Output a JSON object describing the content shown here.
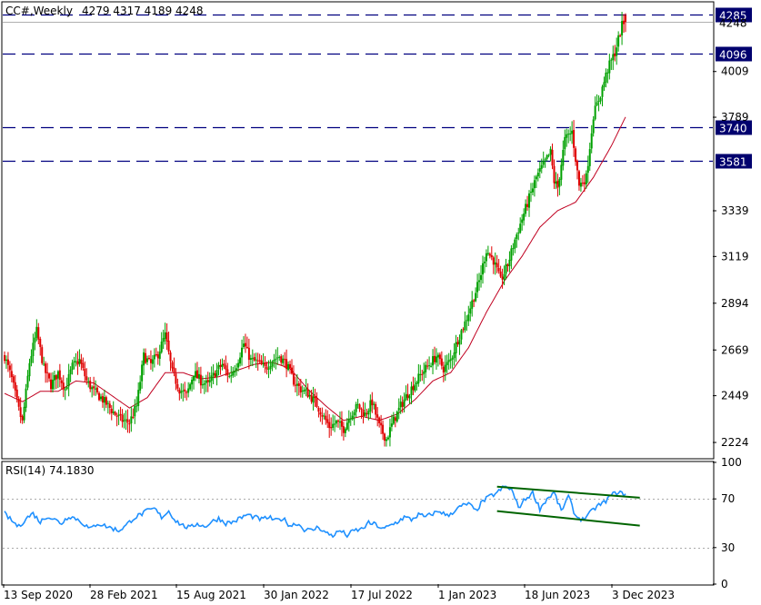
{
  "window": {
    "symbol_label": "CC#,Weekly",
    "ohlc_label": "4279 4317 4189 4248"
  },
  "colors": {
    "bull": "#00a000",
    "bear": "#e00000",
    "ma": "#c00020",
    "rsi": "#1e90ff",
    "trend": "#006400",
    "hline": "#00007f",
    "tag_bg": "#00006e",
    "grid": "#b0b0b0"
  },
  "chart_data": [
    {
      "type": "candlestick",
      "title": "CC#,Weekly",
      "ylim": [
        2150,
        4340
      ],
      "y_ticks": [
        2224,
        2449,
        2669,
        2894,
        3119,
        3339,
        3789,
        4009
      ],
      "x_ticks": [
        "13 Sep 2020",
        "28 Feb 2021",
        "15 Aug 2021",
        "30 Jan 2022",
        "17 Jul 2022",
        "1 Jan 2023",
        "18 Jun 2023",
        "3 Dec 2023"
      ],
      "price_lines": [
        4285,
        4096,
        3740,
        3581
      ],
      "price_tags": [
        "4285",
        "4096",
        "3740",
        "3581"
      ],
      "current_price": 4248,
      "current_price_label": "4248",
      "anchors": [
        [
          0,
          2640
        ],
        [
          4,
          2530
        ],
        [
          8,
          2380
        ],
        [
          10,
          2320
        ],
        [
          14,
          2610
        ],
        [
          18,
          2760
        ],
        [
          22,
          2580
        ],
        [
          26,
          2500
        ],
        [
          30,
          2560
        ],
        [
          34,
          2480
        ],
        [
          38,
          2590
        ],
        [
          42,
          2620
        ],
        [
          46,
          2520
        ],
        [
          50,
          2470
        ],
        [
          54,
          2440
        ],
        [
          58,
          2400
        ],
        [
          62,
          2360
        ],
        [
          66,
          2330
        ],
        [
          70,
          2320
        ],
        [
          74,
          2400
        ],
        [
          78,
          2640
        ],
        [
          82,
          2600
        ],
        [
          86,
          2650
        ],
        [
          90,
          2740
        ],
        [
          94,
          2560
        ],
        [
          98,
          2480
        ],
        [
          102,
          2450
        ],
        [
          106,
          2560
        ],
        [
          110,
          2520
        ],
        [
          114,
          2500
        ],
        [
          118,
          2560
        ],
        [
          122,
          2600
        ],
        [
          126,
          2540
        ],
        [
          130,
          2600
        ],
        [
          134,
          2700
        ],
        [
          138,
          2620
        ],
        [
          142,
          2610
        ],
        [
          146,
          2580
        ],
        [
          150,
          2620
        ],
        [
          154,
          2640
        ],
        [
          158,
          2600
        ],
        [
          162,
          2520
        ],
        [
          166,
          2480
        ],
        [
          170,
          2460
        ],
        [
          174,
          2420
        ],
        [
          178,
          2360
        ],
        [
          182,
          2300
        ],
        [
          186,
          2320
        ],
        [
          190,
          2290
        ],
        [
          194,
          2360
        ],
        [
          198,
          2400
        ],
        [
          202,
          2360
        ],
        [
          206,
          2420
        ],
        [
          210,
          2300
        ],
        [
          214,
          2240
        ],
        [
          218,
          2330
        ],
        [
          222,
          2400
        ],
        [
          226,
          2460
        ],
        [
          230,
          2510
        ],
        [
          234,
          2560
        ],
        [
          238,
          2600
        ],
        [
          242,
          2640
        ],
        [
          246,
          2580
        ],
        [
          250,
          2620
        ],
        [
          254,
          2720
        ],
        [
          258,
          2800
        ],
        [
          262,
          2900
        ],
        [
          266,
          3000
        ],
        [
          270,
          3150
        ],
        [
          274,
          3100
        ],
        [
          278,
          3000
        ],
        [
          282,
          3080
        ],
        [
          286,
          3200
        ],
        [
          290,
          3300
        ],
        [
          294,
          3400
        ],
        [
          298,
          3500
        ],
        [
          302,
          3560
        ],
        [
          306,
          3620
        ],
        [
          308,
          3480
        ],
        [
          310,
          3450
        ],
        [
          314,
          3680
        ],
        [
          318,
          3720
        ],
        [
          322,
          3460
        ],
        [
          326,
          3500
        ],
        [
          330,
          3800
        ],
        [
          334,
          3900
        ],
        [
          338,
          4020
        ],
        [
          342,
          4100
        ],
        [
          346,
          4230
        ],
        [
          348,
          4260
        ]
      ],
      "ma_anchors": [
        [
          0,
          2460
        ],
        [
          10,
          2420
        ],
        [
          20,
          2470
        ],
        [
          30,
          2470
        ],
        [
          40,
          2520
        ],
        [
          50,
          2510
        ],
        [
          60,
          2450
        ],
        [
          70,
          2390
        ],
        [
          80,
          2440
        ],
        [
          90,
          2560
        ],
        [
          100,
          2560
        ],
        [
          110,
          2530
        ],
        [
          120,
          2540
        ],
        [
          130,
          2570
        ],
        [
          140,
          2600
        ],
        [
          150,
          2610
        ],
        [
          160,
          2580
        ],
        [
          170,
          2480
        ],
        [
          180,
          2400
        ],
        [
          190,
          2330
        ],
        [
          200,
          2350
        ],
        [
          210,
          2330
        ],
        [
          220,
          2360
        ],
        [
          230,
          2430
        ],
        [
          240,
          2520
        ],
        [
          250,
          2560
        ],
        [
          260,
          2680
        ],
        [
          270,
          2850
        ],
        [
          280,
          3000
        ],
        [
          290,
          3120
        ],
        [
          300,
          3260
        ],
        [
          310,
          3340
        ],
        [
          320,
          3380
        ],
        [
          330,
          3500
        ],
        [
          340,
          3650
        ],
        [
          348,
          3790
        ]
      ]
    },
    {
      "type": "line",
      "title": "RSI(14)",
      "header_label": "RSI(14) 74.1830",
      "value": 74.183,
      "ylim": [
        0,
        100
      ],
      "y_ticks": [
        0,
        30,
        70,
        100
      ],
      "levels": [
        30,
        70
      ],
      "trendline_upper": [
        [
          276,
          80
        ],
        [
          356,
          71
        ]
      ],
      "trendline_lower": [
        [
          276,
          60
        ],
        [
          356,
          48
        ]
      ],
      "anchors": [
        [
          0,
          58
        ],
        [
          4,
          52
        ],
        [
          8,
          47
        ],
        [
          12,
          54
        ],
        [
          16,
          58
        ],
        [
          20,
          51
        ],
        [
          24,
          56
        ],
        [
          28,
          53
        ],
        [
          32,
          50
        ],
        [
          36,
          56
        ],
        [
          40,
          54
        ],
        [
          44,
          50
        ],
        [
          48,
          45
        ],
        [
          52,
          50
        ],
        [
          56,
          48
        ],
        [
          60,
          46
        ],
        [
          64,
          44
        ],
        [
          68,
          48
        ],
        [
          72,
          54
        ],
        [
          76,
          57
        ],
        [
          80,
          60
        ],
        [
          84,
          62
        ],
        [
          88,
          55
        ],
        [
          92,
          60
        ],
        [
          96,
          52
        ],
        [
          100,
          48
        ],
        [
          104,
          46
        ],
        [
          108,
          50
        ],
        [
          112,
          47
        ],
        [
          116,
          51
        ],
        [
          120,
          54
        ],
        [
          124,
          50
        ],
        [
          128,
          51
        ],
        [
          132,
          54
        ],
        [
          136,
          57
        ],
        [
          140,
          55
        ],
        [
          144,
          53
        ],
        [
          148,
          55
        ],
        [
          152,
          52
        ],
        [
          156,
          54
        ],
        [
          160,
          48
        ],
        [
          164,
          50
        ],
        [
          168,
          45
        ],
        [
          172,
          44
        ],
        [
          176,
          47
        ],
        [
          180,
          42
        ],
        [
          184,
          40
        ],
        [
          188,
          44
        ],
        [
          192,
          40
        ],
        [
          196,
          44
        ],
        [
          200,
          45
        ],
        [
          204,
          50
        ],
        [
          208,
          49
        ],
        [
          212,
          45
        ],
        [
          216,
          48
        ],
        [
          220,
          51
        ],
        [
          224,
          55
        ],
        [
          228,
          53
        ],
        [
          232,
          57
        ],
        [
          236,
          55
        ],
        [
          240,
          58
        ],
        [
          244,
          60
        ],
        [
          248,
          56
        ],
        [
          252,
          60
        ],
        [
          256,
          64
        ],
        [
          260,
          66
        ],
        [
          264,
          60
        ],
        [
          268,
          68
        ],
        [
          272,
          72
        ],
        [
          276,
          75
        ],
        [
          280,
          80
        ],
        [
          284,
          78
        ],
        [
          288,
          63
        ],
        [
          292,
          70
        ],
        [
          296,
          75
        ],
        [
          300,
          62
        ],
        [
          304,
          70
        ],
        [
          308,
          75
        ],
        [
          312,
          60
        ],
        [
          316,
          72
        ],
        [
          320,
          56
        ],
        [
          324,
          53
        ],
        [
          328,
          58
        ],
        [
          332,
          64
        ],
        [
          336,
          67
        ],
        [
          340,
          73
        ],
        [
          344,
          76
        ],
        [
          346,
          74
        ]
      ]
    }
  ]
}
